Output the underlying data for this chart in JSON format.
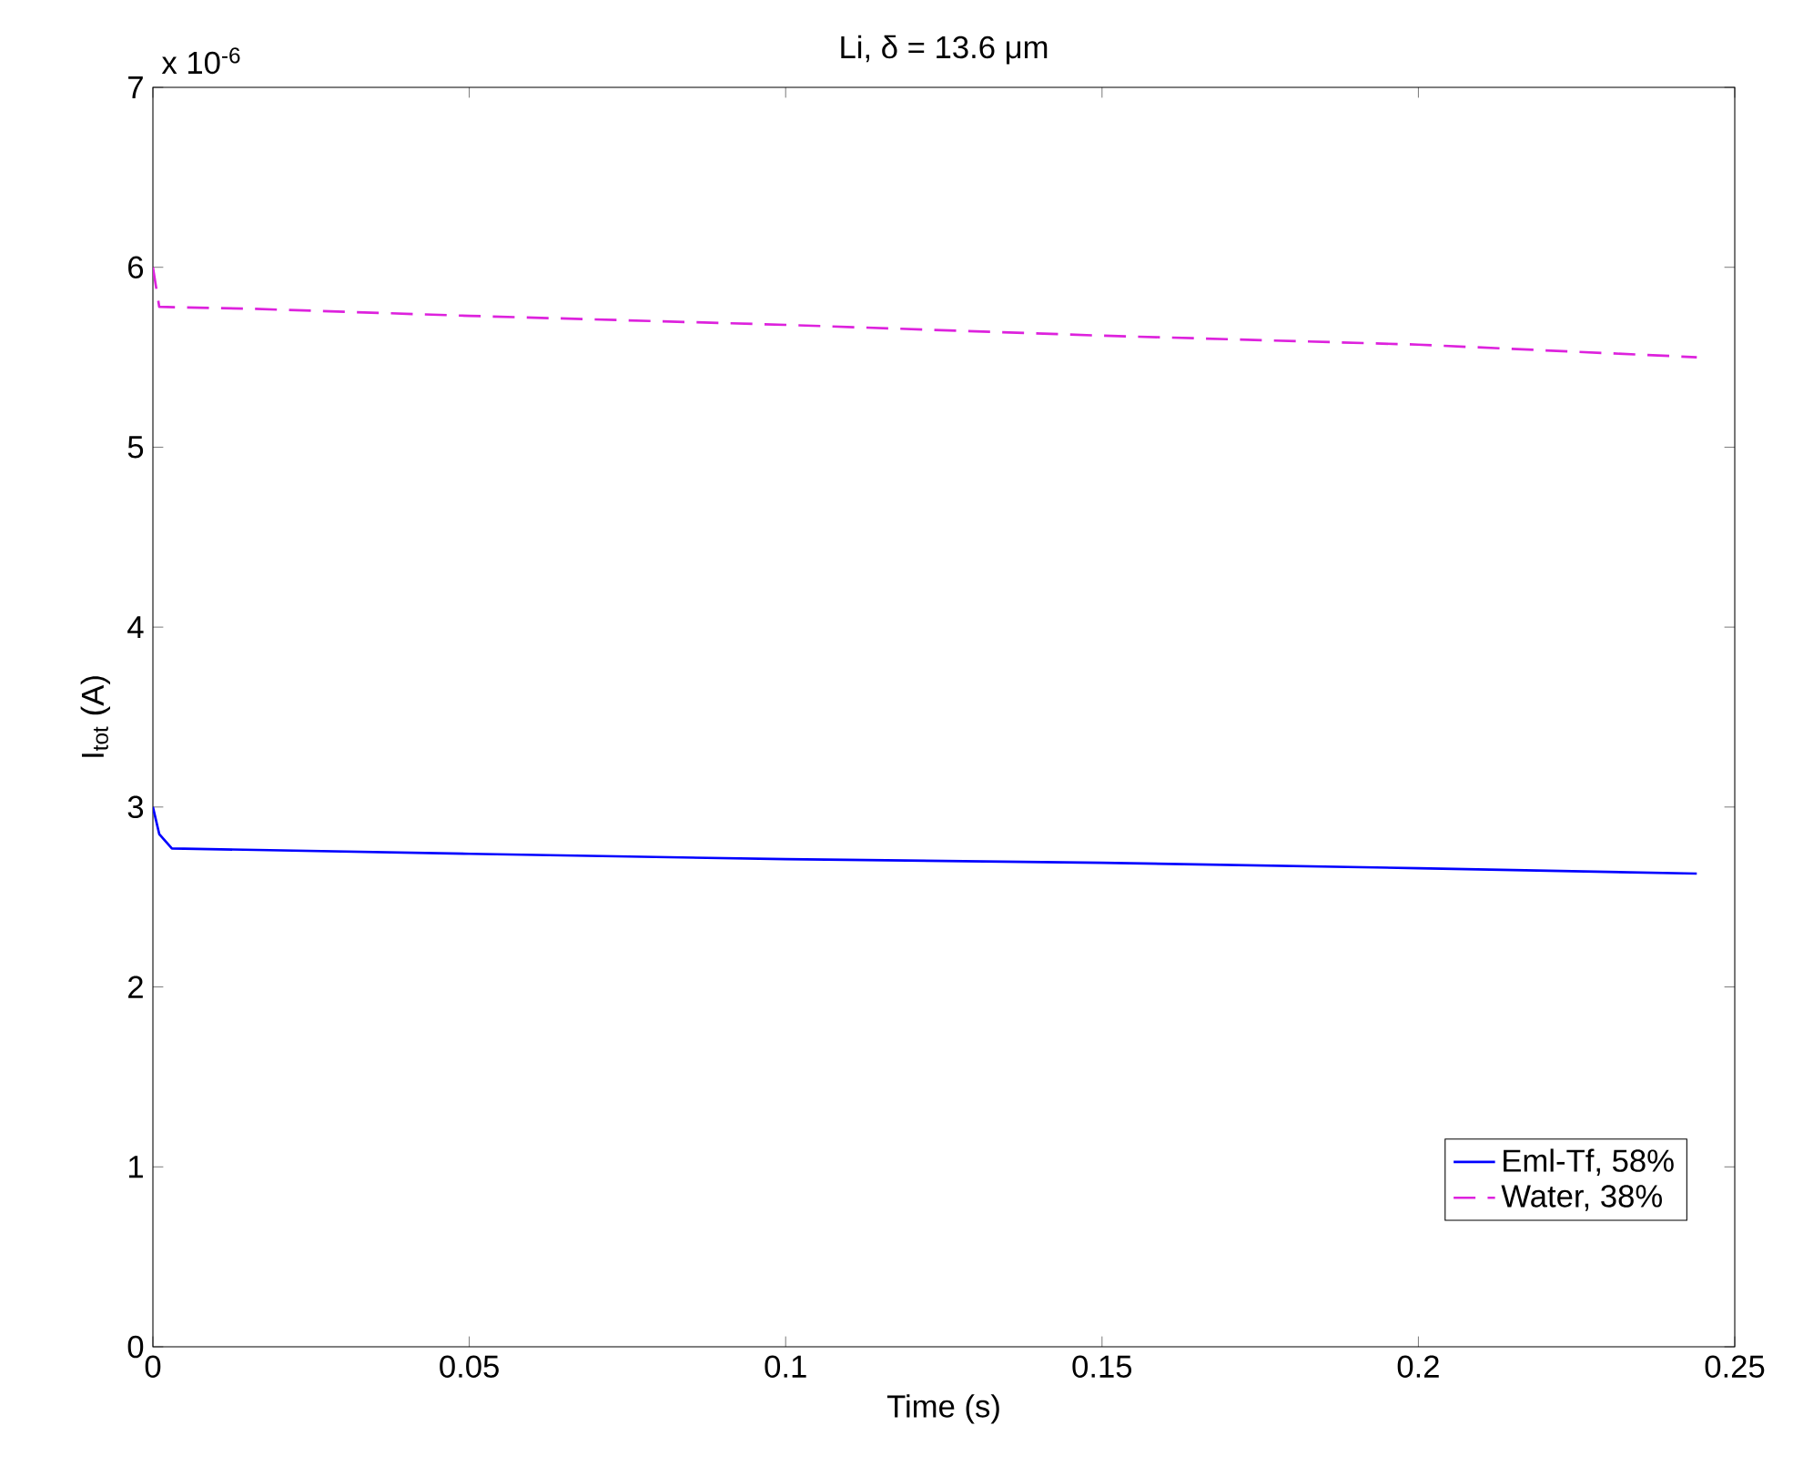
{
  "chart_data": {
    "type": "line",
    "title": "Li, δ = 13.6 μm",
    "xlabel": "Time (s)",
    "ylabel": "I$_{tot}$ (A)",
    "annotations": [
      "x 10$^{-6}$"
    ],
    "xlim": [
      0,
      0.25
    ],
    "ylim": [
      0,
      7
    ],
    "xticks": [
      0,
      0.05,
      0.1,
      0.15,
      0.2,
      0.25
    ],
    "yticks": [
      0,
      1,
      2,
      3,
      4,
      5,
      6,
      7
    ],
    "legend": "bottom right",
    "series": [
      {
        "name": "Eml-Tf, 58%",
        "color": "#0000ff",
        "line_style": "solid",
        "x": [
          0,
          0.001,
          0.003,
          0.05,
          0.1,
          0.15,
          0.2,
          0.244
        ],
        "values": [
          3.0,
          2.85,
          2.77,
          2.74,
          2.71,
          2.69,
          2.66,
          2.63
        ]
      },
      {
        "name": "Water, 38%",
        "color": "#dd22dd",
        "line_style": "dashed",
        "x": [
          0,
          0.001,
          0.015,
          0.05,
          0.1,
          0.15,
          0.2,
          0.244
        ],
        "values": [
          6.0,
          5.78,
          5.77,
          5.73,
          5.68,
          5.62,
          5.57,
          5.5
        ]
      }
    ]
  }
}
